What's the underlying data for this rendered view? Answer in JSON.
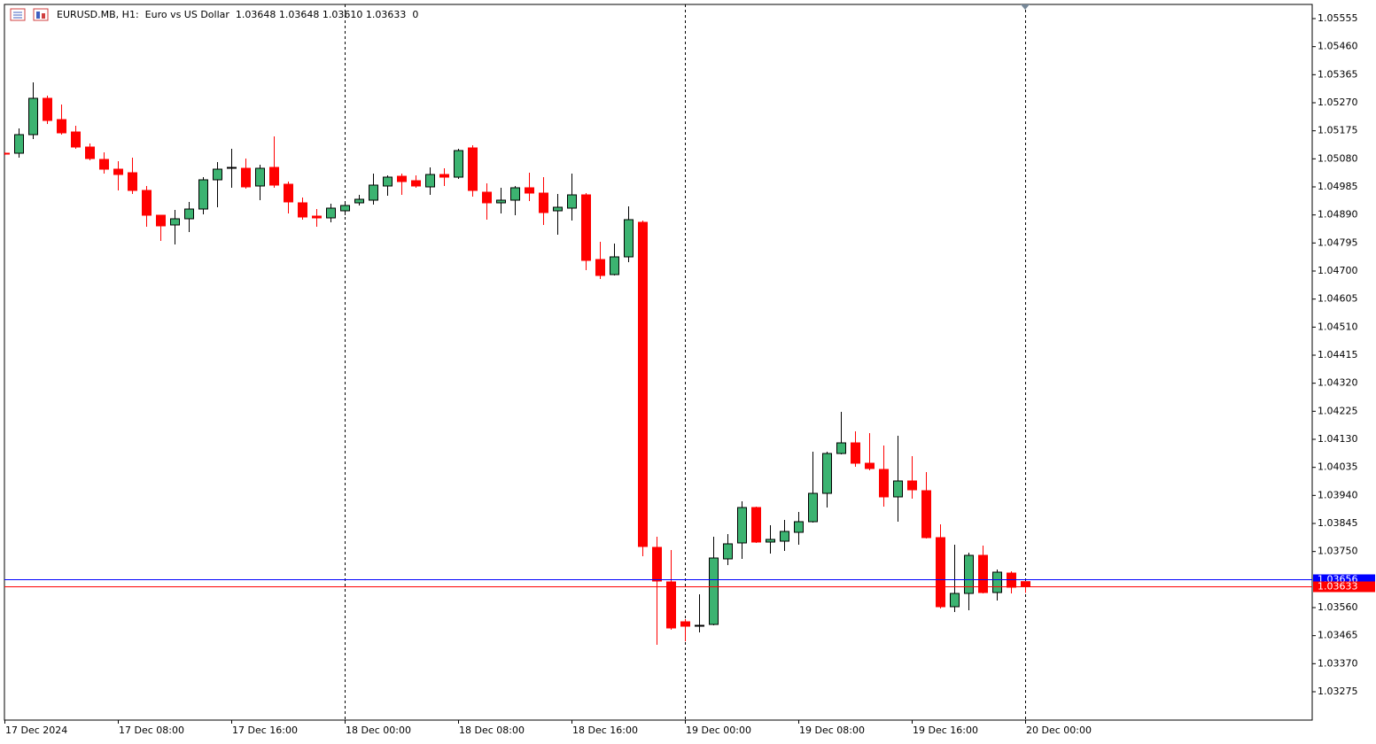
{
  "chart_data": {
    "type": "candlestick",
    "title": "EURUSD.MB, H1:  Euro vs US Dollar  1.03648 1.03648 1.03610 1.03633  0",
    "categories": [
      "17 Dec 2024",
      null,
      null,
      null,
      null,
      null,
      null,
      null,
      "17 Dec 08:00",
      null,
      null,
      null,
      null,
      null,
      null,
      null,
      "17 Dec 16:00",
      null,
      null,
      null,
      null,
      null,
      null,
      null,
      "18 Dec 00:00",
      null,
      null,
      null,
      null,
      null,
      null,
      null,
      "18 Dec 08:00",
      null,
      null,
      null,
      null,
      null,
      null,
      null,
      "18 Dec 16:00",
      null,
      null,
      null,
      null,
      null,
      null,
      null,
      "19 Dec 00:00",
      null,
      null,
      null,
      null,
      null,
      null,
      null,
      "19 Dec 08:00",
      null,
      null,
      null,
      null,
      null,
      null,
      null,
      "19 Dec 16:00",
      null,
      null,
      null,
      null,
      null,
      null,
      null,
      "20 Dec 00:00"
    ],
    "open": [
      1.05099,
      1.05099,
      1.05162,
      1.05285,
      1.05213,
      1.05171,
      1.0512,
      1.05078,
      1.05045,
      1.05033,
      1.04973,
      1.04889,
      1.04856,
      1.04877,
      1.0491,
      1.05009,
      1.05048,
      1.05048,
      1.04988,
      1.05051,
      1.04994,
      1.04931,
      1.04886,
      1.0488,
      1.04904,
      1.04931,
      1.0494,
      1.04988,
      1.05021,
      1.05006,
      1.04985,
      1.05027,
      1.05018,
      1.05117,
      1.04967,
      1.04931,
      1.0494,
      1.04982,
      1.04964,
      1.04904,
      1.04913,
      1.04958,
      1.04739,
      1.04688,
      1.04748,
      1.04865,
      1.03764,
      1.03647,
      1.03512,
      1.03497,
      1.03503,
      1.03725,
      1.03779,
      1.03899,
      1.03782,
      1.03785,
      1.03815,
      1.03851,
      1.03947,
      1.04082,
      1.04118,
      1.04049,
      1.04028,
      1.03935,
      1.03989,
      1.03956,
      1.03797,
      1.03563,
      1.03608,
      1.03737,
      1.03611,
      1.03677,
      1.03648
    ],
    "high": [
      1.05102,
      1.05183,
      1.05339,
      1.05294,
      1.05264,
      1.05192,
      1.05132,
      1.05102,
      1.05072,
      1.05084,
      1.04988,
      1.04889,
      1.04907,
      1.04934,
      1.05018,
      1.05069,
      1.05114,
      1.05081,
      1.0506,
      1.05156,
      1.05003,
      1.04949,
      1.0491,
      1.04928,
      1.04934,
      1.04958,
      1.0503,
      1.05024,
      1.0503,
      1.05024,
      1.05051,
      1.05048,
      1.05114,
      1.05126,
      1.04997,
      1.04982,
      1.04988,
      1.05033,
      1.05018,
      1.04961,
      1.0503,
      1.04964,
      1.04799,
      1.04793,
      1.04919,
      1.04871,
      1.038,
      1.03755,
      1.03521,
      1.03605,
      1.038,
      1.03809,
      1.0392,
      1.03902,
      1.03839,
      1.03857,
      1.03884,
      1.04088,
      1.04088,
      1.04223,
      1.04157,
      1.04151,
      1.04109,
      1.04142,
      1.04073,
      1.04019,
      1.03842,
      1.03773,
      1.03746,
      1.0377,
      1.03689,
      1.03683,
      1.03648
    ],
    "low": [
      1.05093,
      1.05084,
      1.05147,
      1.05198,
      1.05162,
      1.05114,
      1.05075,
      1.0503,
      1.04973,
      1.04961,
      1.0485,
      1.04802,
      1.0479,
      1.04832,
      1.04892,
      1.04916,
      1.04982,
      1.04979,
      1.0494,
      1.04982,
      1.04895,
      1.04874,
      1.0485,
      1.04865,
      1.04889,
      1.04922,
      1.04925,
      1.04955,
      1.04958,
      1.04982,
      1.04958,
      1.04988,
      1.05012,
      1.04952,
      1.04874,
      1.04895,
      1.04889,
      1.04937,
      1.04856,
      1.04823,
      1.04871,
      1.04703,
      1.04673,
      1.04685,
      1.0473,
      1.03734,
      1.03434,
      1.03485,
      1.03446,
      1.03476,
      1.035,
      1.03704,
      1.03725,
      1.03779,
      1.03743,
      1.03752,
      1.03773,
      1.03848,
      1.03899,
      1.04079,
      1.04037,
      1.04025,
      1.03902,
      1.03851,
      1.03929,
      1.03794,
      1.03557,
      1.03545,
      1.03551,
      1.03608,
      1.03584,
      1.03608,
      1.0361
    ],
    "close": [
      1.05096,
      1.05162,
      1.05285,
      1.0521,
      1.05168,
      1.0512,
      1.05081,
      1.05045,
      1.05027,
      1.04973,
      1.04889,
      1.04853,
      1.04877,
      1.0491,
      1.05009,
      1.05045,
      1.05051,
      1.04985,
      1.05048,
      1.04991,
      1.04934,
      1.04883,
      1.0488,
      1.04913,
      1.04922,
      1.04943,
      1.04991,
      1.05018,
      1.05003,
      1.04988,
      1.05027,
      1.05018,
      1.05108,
      1.04973,
      1.04931,
      1.0494,
      1.04982,
      1.04964,
      1.04898,
      1.04916,
      1.04958,
      1.04736,
      1.04685,
      1.04748,
      1.04874,
      1.03767,
      1.0365,
      1.03491,
      1.03497,
      1.035,
      1.03728,
      1.03776,
      1.03899,
      1.03782,
      1.03791,
      1.03818,
      1.03851,
      1.03947,
      1.04082,
      1.04118,
      1.04049,
      1.04031,
      1.03935,
      1.03989,
      1.03959,
      1.03797,
      1.03563,
      1.03608,
      1.03737,
      1.03611,
      1.0368,
      1.03629,
      1.03633
    ],
    "up_color": "#3cb371",
    "down_color": "#ff0000",
    "ylim": [
      1.03179,
      1.05603
    ],
    "yticks": [
      1.05555,
      {
        "value": 1.0546,
        "label": "1.05460"
      },
      1.05365,
      {
        "value": 1.0527,
        "label": "1.05270"
      },
      1.05175,
      {
        "value": 1.0508,
        "label": "1.05080"
      },
      1.04985,
      {
        "value": 1.0489,
        "label": "1.04890"
      },
      1.04795,
      {
        "value": 1.047,
        "label": "1.04700"
      },
      1.04605,
      {
        "value": 1.0451,
        "label": "1.04510"
      },
      1.04415,
      {
        "value": 1.0432,
        "label": "1.04320"
      },
      1.04225,
      {
        "value": 1.0413,
        "label": "1.04130"
      },
      1.04035,
      {
        "value": 1.0394,
        "label": "1.03940"
      },
      1.03845,
      {
        "value": 1.0375,
        "label": "1.03750"
      },
      {
        "value": 1.0356,
        "label": "1.03560"
      },
      1.03465,
      {
        "value": 1.0337,
        "label": "1.03370"
      },
      1.03275
    ],
    "price_lines": [
      {
        "value": 1.03656,
        "color": "#0000ff"
      },
      {
        "value": 1.03633,
        "color": "#ff0000"
      }
    ],
    "grid": false
  }
}
